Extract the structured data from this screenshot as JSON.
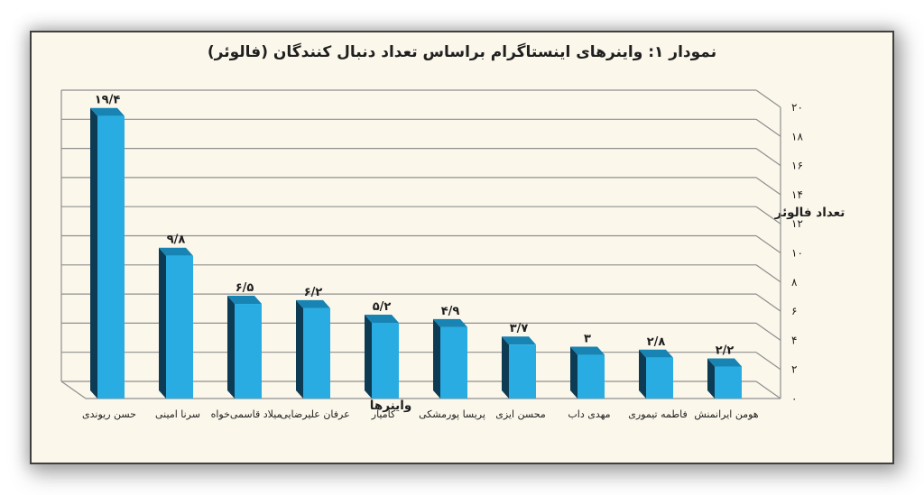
{
  "chart_data": {
    "type": "bar",
    "title": "نمودار ۱: واینرهای اینستاگرام براساس تعداد دنبال کنندگان (فالوئر)",
    "xlabel": "واینرها",
    "ylabel": "تعداد فالوئر",
    "categories": [
      "حسن ریوندی",
      "سرنا امینی",
      "میلاد قاسمی‌خواه",
      "عرفان علیرضایی",
      "کامیار",
      "پریسا پورمشکی",
      "محسن ایزی",
      "مهدی داب",
      "فاطمه تیموری",
      "هومن ایرانمنش"
    ],
    "values": [
      19.4,
      9.8,
      6.5,
      6.2,
      5.2,
      4.9,
      3.7,
      3,
      2.8,
      2.2
    ],
    "value_labels": [
      "۱۹/۴",
      "۹/۸",
      "۶/۵",
      "۶/۲",
      "۵/۲",
      "۴/۹",
      "۳/۷",
      "۳",
      "۲/۸",
      "۲/۲"
    ],
    "y_ticks": [
      0,
      2,
      4,
      6,
      8,
      10,
      12,
      14,
      16,
      18,
      20
    ],
    "y_tick_labels": [
      "۰",
      "۲",
      "۴",
      "۶",
      "۸",
      "۱۰",
      "۱۲",
      "۱۴",
      "۱۶",
      "۱۸",
      "۲۰"
    ],
    "ylim": [
      0,
      20
    ],
    "grid": true,
    "bar_style": "3d",
    "colors": {
      "bar_front": "#29ACE2",
      "bar_top": "#1784B4",
      "bar_side": "#0E3B54",
      "gridline": "#8F8F8F",
      "text": "#1F1F1F",
      "frame_background": "#FBF7EB",
      "frame_border": "#3F3F3F",
      "page_background": "#FFFFFF"
    }
  }
}
